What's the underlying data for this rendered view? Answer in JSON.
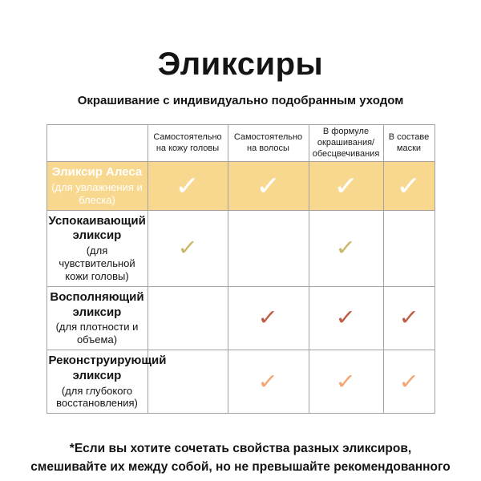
{
  "page": {
    "title": "Эликсиры",
    "subtitle": "Окрашивание с индивидуально подобранным уходом",
    "footnote": "*Если вы хотите сочетать свойства разных эликсиров, смешивайте их между собой, но не превышайте рекомендованного количества"
  },
  "colors": {
    "highlight_row_bg": "#f8d88e",
    "highlight_row_text": "#ffffff",
    "check_white": "#ffffff",
    "check_gold": "#c9b76b",
    "check_terracotta": "#bf5c45",
    "check_peach": "#f3a671",
    "grid_border": "#a3a3a3",
    "text": "#141414"
  },
  "table": {
    "corner": "",
    "columns": [
      "Самостоятельно на кожу головы",
      "Самостоятельно на волосы",
      "В формуле окрашивания/ обесцвечивания",
      "В составе маски"
    ],
    "rows": [
      {
        "name": "Эликсир Алеса",
        "note": "(для увлажнения и блеска)",
        "highlighted": true,
        "bg": "#f8d88e",
        "text_color": "#ffffff",
        "check_color": "#ffffff",
        "cells": [
          "✓",
          "✓",
          "✓",
          "✓"
        ]
      },
      {
        "name": "Успокаивающий эликсир",
        "note": "(для чувствительной кожи головы)",
        "highlighted": false,
        "bg": "#ffffff",
        "text_color": "#141414",
        "check_color": "#c9b76b",
        "cells": [
          "✓",
          "",
          "✓",
          ""
        ]
      },
      {
        "name": "Восполняющий эликсир",
        "note": "(для плотности и объема)",
        "highlighted": false,
        "bg": "#ffffff",
        "text_color": "#141414",
        "check_color": "#bf5c45",
        "cells": [
          "",
          "✓",
          "✓",
          "✓"
        ]
      },
      {
        "name": "Реконструирующий эликсир",
        "note": "(для глубокого восстановления)",
        "highlighted": false,
        "bg": "#ffffff",
        "text_color": "#141414",
        "check_color": "#f3a671",
        "cells": [
          "",
          "✓",
          "✓",
          "✓"
        ]
      }
    ]
  }
}
